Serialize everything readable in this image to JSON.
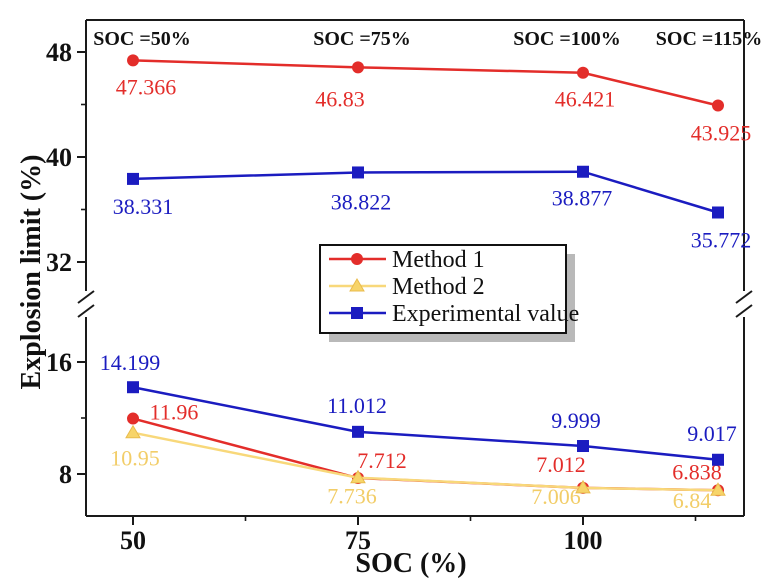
{
  "chart_data": {
    "type": "line",
    "title": "",
    "xlabel": "SOC (%)",
    "ylabel": "Explosion limit (%)",
    "x_axis": {
      "major_ticks": [
        50,
        75,
        100
      ],
      "major_tick_labels": [
        "50",
        "75",
        "100"
      ],
      "minor_ticks": [
        62.5,
        87.5,
        112.5
      ],
      "range_note": "x from ~44 to ~118, SOC percent"
    },
    "y_axis": {
      "broken": true,
      "upper_major_ticks": [
        48,
        40,
        32
      ],
      "upper_minor_ticks": [
        44,
        36
      ],
      "lower_major_ticks": [
        16,
        8
      ],
      "lower_minor_ticks": [
        12
      ],
      "upper_range": [
        30,
        50.5
      ],
      "lower_range": [
        5,
        19.5
      ],
      "grid": false
    },
    "annotations": [
      {
        "text": "SOC =50%",
        "x": 50,
        "dx": 9
      },
      {
        "text": "SOC =75%",
        "x": 75,
        "dx": 4
      },
      {
        "text": "SOC =100%",
        "x": 100,
        "dx": -16
      },
      {
        "text": "SOC =115%",
        "x": 115,
        "dx": -9
      }
    ],
    "x": [
      50,
      75,
      100,
      115
    ],
    "series": [
      {
        "name": "Method 1",
        "color": "#e32d2a",
        "label_color": "#e32d2a",
        "marker": "circle",
        "upper": {
          "values": [
            47.366,
            46.83,
            46.421,
            43.925
          ],
          "labels": [
            "47.366",
            "46.83",
            "46.421",
            "43.925"
          ],
          "label_dx": [
            13,
            -18,
            2,
            3
          ],
          "label_dy": [
            26,
            31,
            26,
            27
          ]
        },
        "lower": {
          "values": [
            11.96,
            7.712,
            7.012,
            6.838
          ],
          "labels": [
            "11.96",
            "7.712",
            "7.012",
            "6.838"
          ],
          "label_dx": [
            41,
            24,
            -22,
            -21
          ],
          "label_dy": [
            -7,
            -18,
            -24,
            -19
          ]
        }
      },
      {
        "name": "Method 2",
        "color": "#f8d87a",
        "label_color": "#f2cd68",
        "marker": "triangle",
        "marker_fill": "#f7d469",
        "marker_edge": "#e9bb4d",
        "lower": {
          "values": [
            10.95,
            7.736,
            7.006,
            6.84
          ],
          "labels": [
            "10.95",
            "7.736",
            "7.006",
            "6.84"
          ],
          "label_dx": [
            2,
            -6,
            -27,
            -26
          ],
          "label_dy": [
            25,
            18,
            8,
            10
          ]
        }
      },
      {
        "name": "Experimental value",
        "color": "#1b1cc0",
        "label_color": "#1b1cc0",
        "marker": "square",
        "upper": {
          "values": [
            38.331,
            38.822,
            38.877,
            35.772
          ],
          "labels": [
            "38.331",
            "38.822",
            "38.877",
            "35.772"
          ],
          "label_dx": [
            10,
            3,
            -1,
            3
          ],
          "label_dy": [
            27,
            29,
            26,
            27
          ]
        },
        "lower": {
          "values": [
            14.199,
            11.012,
            9.999,
            9.017
          ],
          "labels": [
            "14.199",
            "11.012",
            "9.999",
            "9.017"
          ],
          "label_dx": [
            -3,
            -1,
            -7,
            -6
          ],
          "label_dy": [
            -25,
            -27,
            -26,
            -27
          ]
        }
      }
    ],
    "legend": {
      "position": "center",
      "items": [
        "Method 1",
        "Method 2",
        "Experimental value"
      ]
    }
  }
}
